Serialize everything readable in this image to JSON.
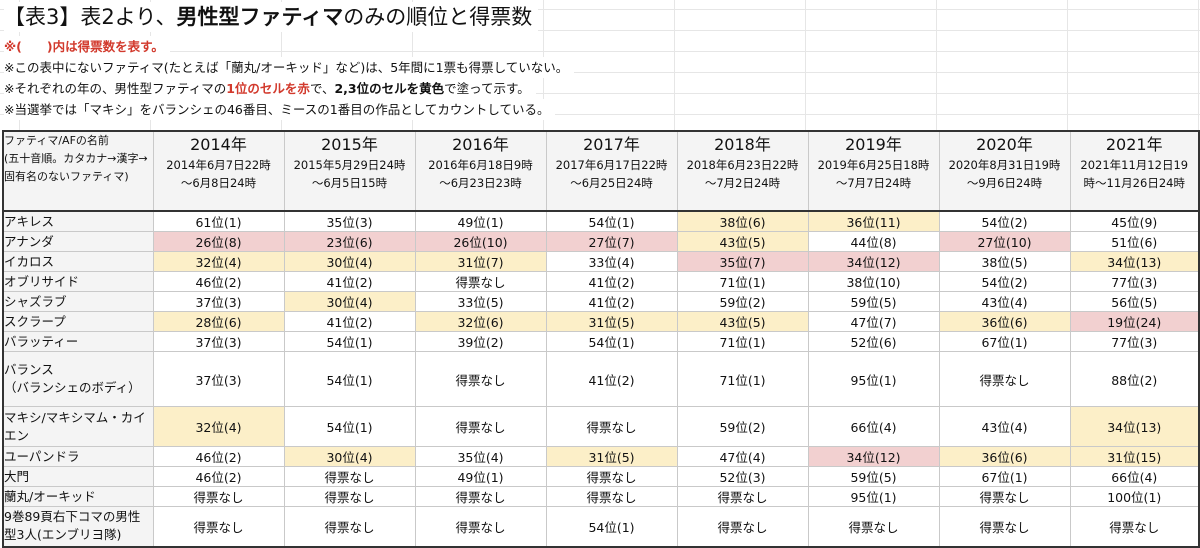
{
  "title": {
    "prefix": "【表3】表2より、",
    "bold": "男性型ファティマ",
    "suffix": "のみの順位と得票数"
  },
  "notes": {
    "n1": "※(　　)内は得票数を表す。",
    "n2": "※この表中にないファティマ(たとえば「蘭丸/オーキッド」など)は、5年間に1票も得票していない。",
    "n3_a": "※それぞれの年の、男性型ファティマの",
    "n3_b": "1位のセルを赤",
    "n3_c": "で、",
    "n3_d": "2,3位のセルを黄色",
    "n3_e": "で塗って示す。",
    "n4": "※当選挙では「マキシ」をバランシェの46番目、ミースの1番目の作品としてカウントしている。"
  },
  "table": {
    "name_header": "ファティマ/AFの名前\n(五十音順。カタカナ→漢字→固有名のないファティマ)",
    "years": [
      {
        "year": "2014年",
        "period": "2014年6月7日22時\n〜6月8日24時"
      },
      {
        "year": "2015年",
        "period": "2015年5月29日24時\n〜6月5日15時"
      },
      {
        "year": "2016年",
        "period": "2016年6月18日9時\n〜6月23日23時"
      },
      {
        "year": "2017年",
        "period": "2017年6月17日22時\n〜6月25日24時"
      },
      {
        "year": "2018年",
        "period": "2018年6月23日22時\n〜7月2日24時"
      },
      {
        "year": "2019年",
        "period": "2019年6月25日18時\n〜7月7日24時"
      },
      {
        "year": "2020年",
        "period": "2020年8月31日19時\n〜9月6日24時"
      },
      {
        "year": "2021年",
        "period": "2021年11月12日19\n時〜11月26日24時"
      }
    ],
    "rows": [
      {
        "name": "アキレス",
        "values": [
          "61位(1)",
          "35位(3)",
          "49位(1)",
          "54位(1)",
          "38位(6)",
          "36位(11)",
          "54位(2)",
          "45位(9)"
        ]
      },
      {
        "name": "アナンダ",
        "values": [
          "26位(8)",
          "23位(6)",
          "26位(10)",
          "27位(7)",
          "43位(5)",
          "44位(8)",
          "27位(10)",
          "51位(6)"
        ]
      },
      {
        "name": "イカロス",
        "values": [
          "32位(4)",
          "30位(4)",
          "31位(7)",
          "33位(4)",
          "35位(7)",
          "34位(12)",
          "38位(5)",
          "34位(13)"
        ]
      },
      {
        "name": "オブリサイド",
        "values": [
          "46位(2)",
          "41位(2)",
          "得票なし",
          "41位(2)",
          "71位(1)",
          "38位(10)",
          "54位(2)",
          "77位(3)"
        ]
      },
      {
        "name": "シャズラブ",
        "values": [
          "37位(3)",
          "30位(4)",
          "33位(5)",
          "41位(2)",
          "59位(2)",
          "59位(5)",
          "43位(4)",
          "56位(5)"
        ]
      },
      {
        "name": "スクラープ",
        "values": [
          "28位(6)",
          "41位(2)",
          "32位(6)",
          "31位(5)",
          "43位(5)",
          "47位(7)",
          "36位(6)",
          "19位(24)"
        ]
      },
      {
        "name": "バラッティー",
        "values": [
          "37位(3)",
          "54位(1)",
          "39位(2)",
          "54位(1)",
          "71位(1)",
          "52位(6)",
          "67位(1)",
          "77位(3)"
        ]
      },
      {
        "name": "バランス\n（バランシェのボディ）",
        "values": [
          "37位(3)",
          "54位(1)",
          "得票なし",
          "41位(2)",
          "71位(1)",
          "95位(1)",
          "得票なし",
          "88位(2)"
        ]
      },
      {
        "name": "マキシ/マキシマム・カイエン",
        "values": [
          "32位(4)",
          "54位(1)",
          "得票なし",
          "得票なし",
          "59位(2)",
          "66位(4)",
          "43位(4)",
          "34位(13)"
        ]
      },
      {
        "name": "ユーパンドラ",
        "values": [
          "46位(2)",
          "30位(4)",
          "35位(4)",
          "31位(5)",
          "47位(4)",
          "34位(12)",
          "36位(6)",
          "31位(15)"
        ]
      },
      {
        "name": "大門",
        "values": [
          "46位(2)",
          "得票なし",
          "49位(1)",
          "得票なし",
          "52位(3)",
          "59位(5)",
          "67位(1)",
          "66位(4)"
        ]
      },
      {
        "name": "蘭丸/オーキッド",
        "values": [
          "得票なし",
          "得票なし",
          "得票なし",
          "得票なし",
          "得票なし",
          "95位(1)",
          "得票なし",
          "100位(1)"
        ]
      },
      {
        "name": "9巻89頁右下コマの男性型3人(エンブリヨ隊)",
        "values": [
          "得票なし",
          "得票なし",
          "得票なし",
          "54位(1)",
          "得票なし",
          "得票なし",
          "得票なし",
          "得票なし"
        ]
      }
    ],
    "highlights": [
      [
        "",
        "",
        "",
        "",
        "y",
        "y",
        "",
        ""
      ],
      [
        "r",
        "r",
        "r",
        "r",
        "y",
        "",
        "r",
        ""
      ],
      [
        "y",
        "y",
        "y",
        "",
        "r",
        "r",
        "",
        "y"
      ],
      [
        "",
        "",
        "",
        "",
        "",
        "",
        "",
        ""
      ],
      [
        "",
        "y",
        "",
        "",
        "",
        "",
        "",
        ""
      ],
      [
        "y",
        "",
        "y",
        "y",
        "y",
        "",
        "y",
        "r"
      ],
      [
        "",
        "",
        "",
        "",
        "",
        "",
        "",
        ""
      ],
      [
        "",
        "",
        "",
        "",
        "",
        "",
        "",
        ""
      ],
      [
        "y",
        "",
        "",
        "",
        "",
        "",
        "",
        "y"
      ],
      [
        "",
        "y",
        "",
        "y",
        "",
        "r",
        "y",
        "y"
      ],
      [
        "",
        "",
        "",
        "",
        "",
        "",
        "",
        ""
      ],
      [
        "",
        "",
        "",
        "",
        "",
        "",
        "",
        ""
      ],
      [
        "",
        "",
        "",
        "",
        "",
        "",
        "",
        ""
      ]
    ],
    "colors": {
      "first_place": "#f2d0d0",
      "second_third": "#fcefc8",
      "header_bg": "#f4f4f4",
      "note_red": "#d23a2d"
    }
  }
}
